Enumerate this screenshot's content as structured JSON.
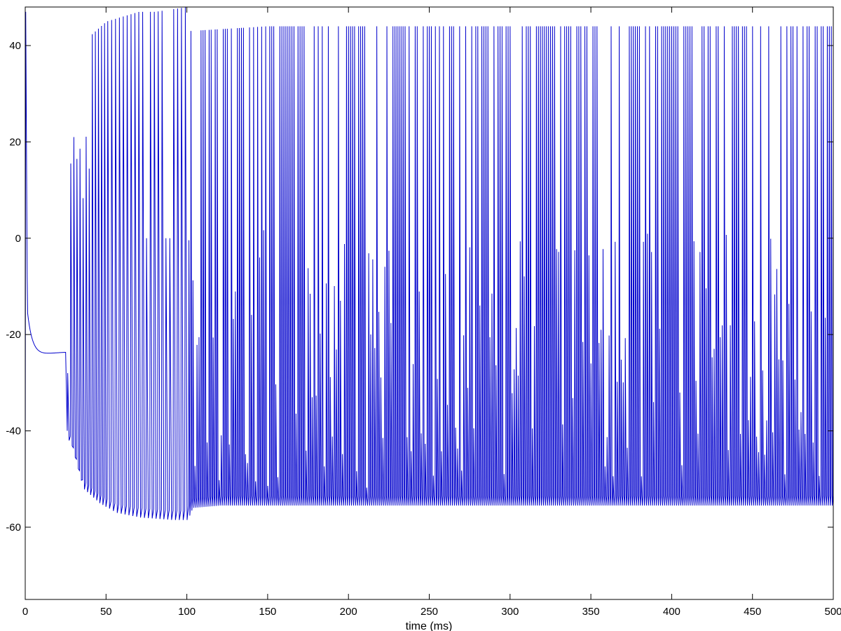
{
  "chart_data": {
    "type": "line",
    "title": "",
    "xlabel": "time (ms)",
    "ylabel": "",
    "xlim": [
      0,
      500
    ],
    "ylim": [
      -75,
      48
    ],
    "xticks": [
      0,
      50,
      100,
      150,
      200,
      250,
      300,
      350,
      400,
      450,
      500
    ],
    "yticks": [
      -60,
      -40,
      -20,
      0,
      20,
      40
    ],
    "grid": false,
    "legend": "none",
    "line_color": "#0000cc",
    "axis_color": "#000000",
    "background": "#ffffff",
    "series": [
      {
        "description_points": [
          {
            "x": 0,
            "y": -55
          },
          {
            "x": 0.4,
            "y": 47
          },
          {
            "x": 1.5,
            "y": -5
          },
          {
            "x": 3,
            "y": -14
          },
          {
            "x": 10,
            "y": -20
          },
          {
            "x": 25,
            "y": -23.5
          },
          {
            "x": 26,
            "y": -28
          },
          {
            "x": 26.5,
            "y": 19
          },
          {
            "x": 40,
            "y": 42
          },
          {
            "x": 50,
            "y": 45
          },
          {
            "x": 60,
            "y": 46
          },
          {
            "x": 70,
            "y": 47
          },
          {
            "x": 80,
            "y": 47
          },
          {
            "x": 100,
            "y": 48
          },
          {
            "x": 101,
            "y": 43
          },
          {
            "x": 150,
            "y": 44
          },
          {
            "x": 200,
            "y": 44
          },
          {
            "x": 250,
            "y": 44
          },
          {
            "x": 300,
            "y": 44
          },
          {
            "x": 350,
            "y": 44
          },
          {
            "x": 400,
            "y": 44
          },
          {
            "x": 450,
            "y": 44
          },
          {
            "x": 500,
            "y": 44
          }
        ],
        "trough_points": [
          {
            "x": 27,
            "y": -42
          },
          {
            "x": 35,
            "y": -52
          },
          {
            "x": 45,
            "y": -55
          },
          {
            "x": 55,
            "y": -57
          },
          {
            "x": 70,
            "y": -58
          },
          {
            "x": 90,
            "y": -58.5
          },
          {
            "x": 100,
            "y": -58.5
          },
          {
            "x": 103,
            "y": -56
          },
          {
            "x": 120,
            "y": -55.5
          },
          {
            "x": 200,
            "y": -55.5
          },
          {
            "x": 300,
            "y": -55.5
          },
          {
            "x": 400,
            "y": -55.5
          },
          {
            "x": 500,
            "y": -55.5
          }
        ],
        "spike_intervals_ms": [
          {
            "from": 26,
            "to": 50,
            "period": 1.9
          },
          {
            "from": 50,
            "to": 100,
            "period": 2.4
          },
          {
            "from": 100,
            "to": 500,
            "period": 1.25
          }
        ]
      }
    ]
  }
}
